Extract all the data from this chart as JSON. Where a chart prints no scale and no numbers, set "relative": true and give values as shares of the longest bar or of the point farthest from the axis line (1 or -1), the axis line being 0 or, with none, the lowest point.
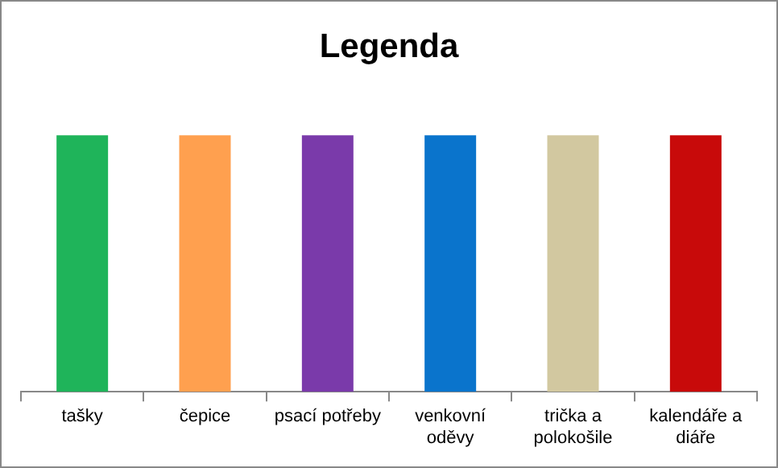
{
  "chart_data": {
    "type": "bar",
    "title": "Legenda",
    "relative": true,
    "categories": [
      "tašky",
      "čepice",
      "psací potřeby",
      "venkovní oděvy",
      "trička a polokošile",
      "kalendáře a diáře"
    ],
    "values": [
      1,
      1,
      1,
      1,
      1,
      1
    ],
    "colors": [
      "#1fb45a",
      "#ffa04f",
      "#7a3aaa",
      "#0a74cc",
      "#d2c8a0",
      "#c80a0a"
    ],
    "legend": false
  }
}
